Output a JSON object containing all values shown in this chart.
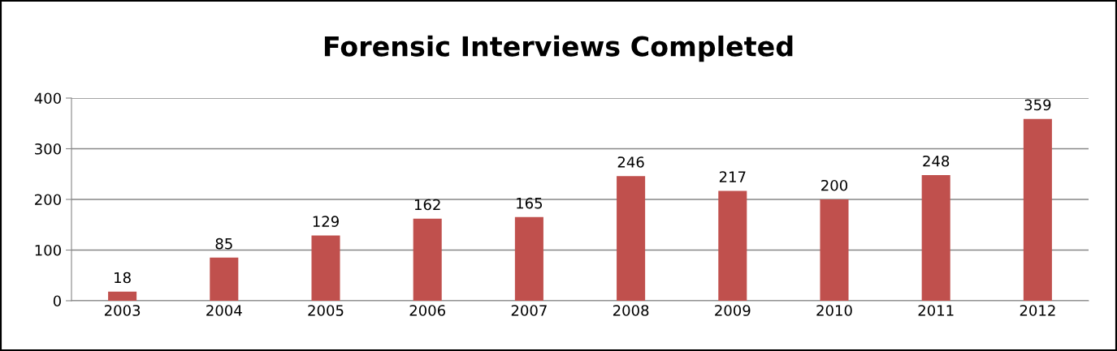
{
  "chart_data": {
    "type": "bar",
    "title": "Forensic Interviews Completed",
    "categories": [
      "2003",
      "2004",
      "2005",
      "2006",
      "2007",
      "2008",
      "2009",
      "2010",
      "2011",
      "2012"
    ],
    "values": [
      18,
      85,
      129,
      162,
      165,
      246,
      217,
      200,
      248,
      359
    ],
    "color": "#c0504d",
    "ylim": [
      0,
      400
    ],
    "yticks": [
      0,
      100,
      200,
      300,
      400
    ],
    "grid": "y",
    "data_labels": true
  }
}
